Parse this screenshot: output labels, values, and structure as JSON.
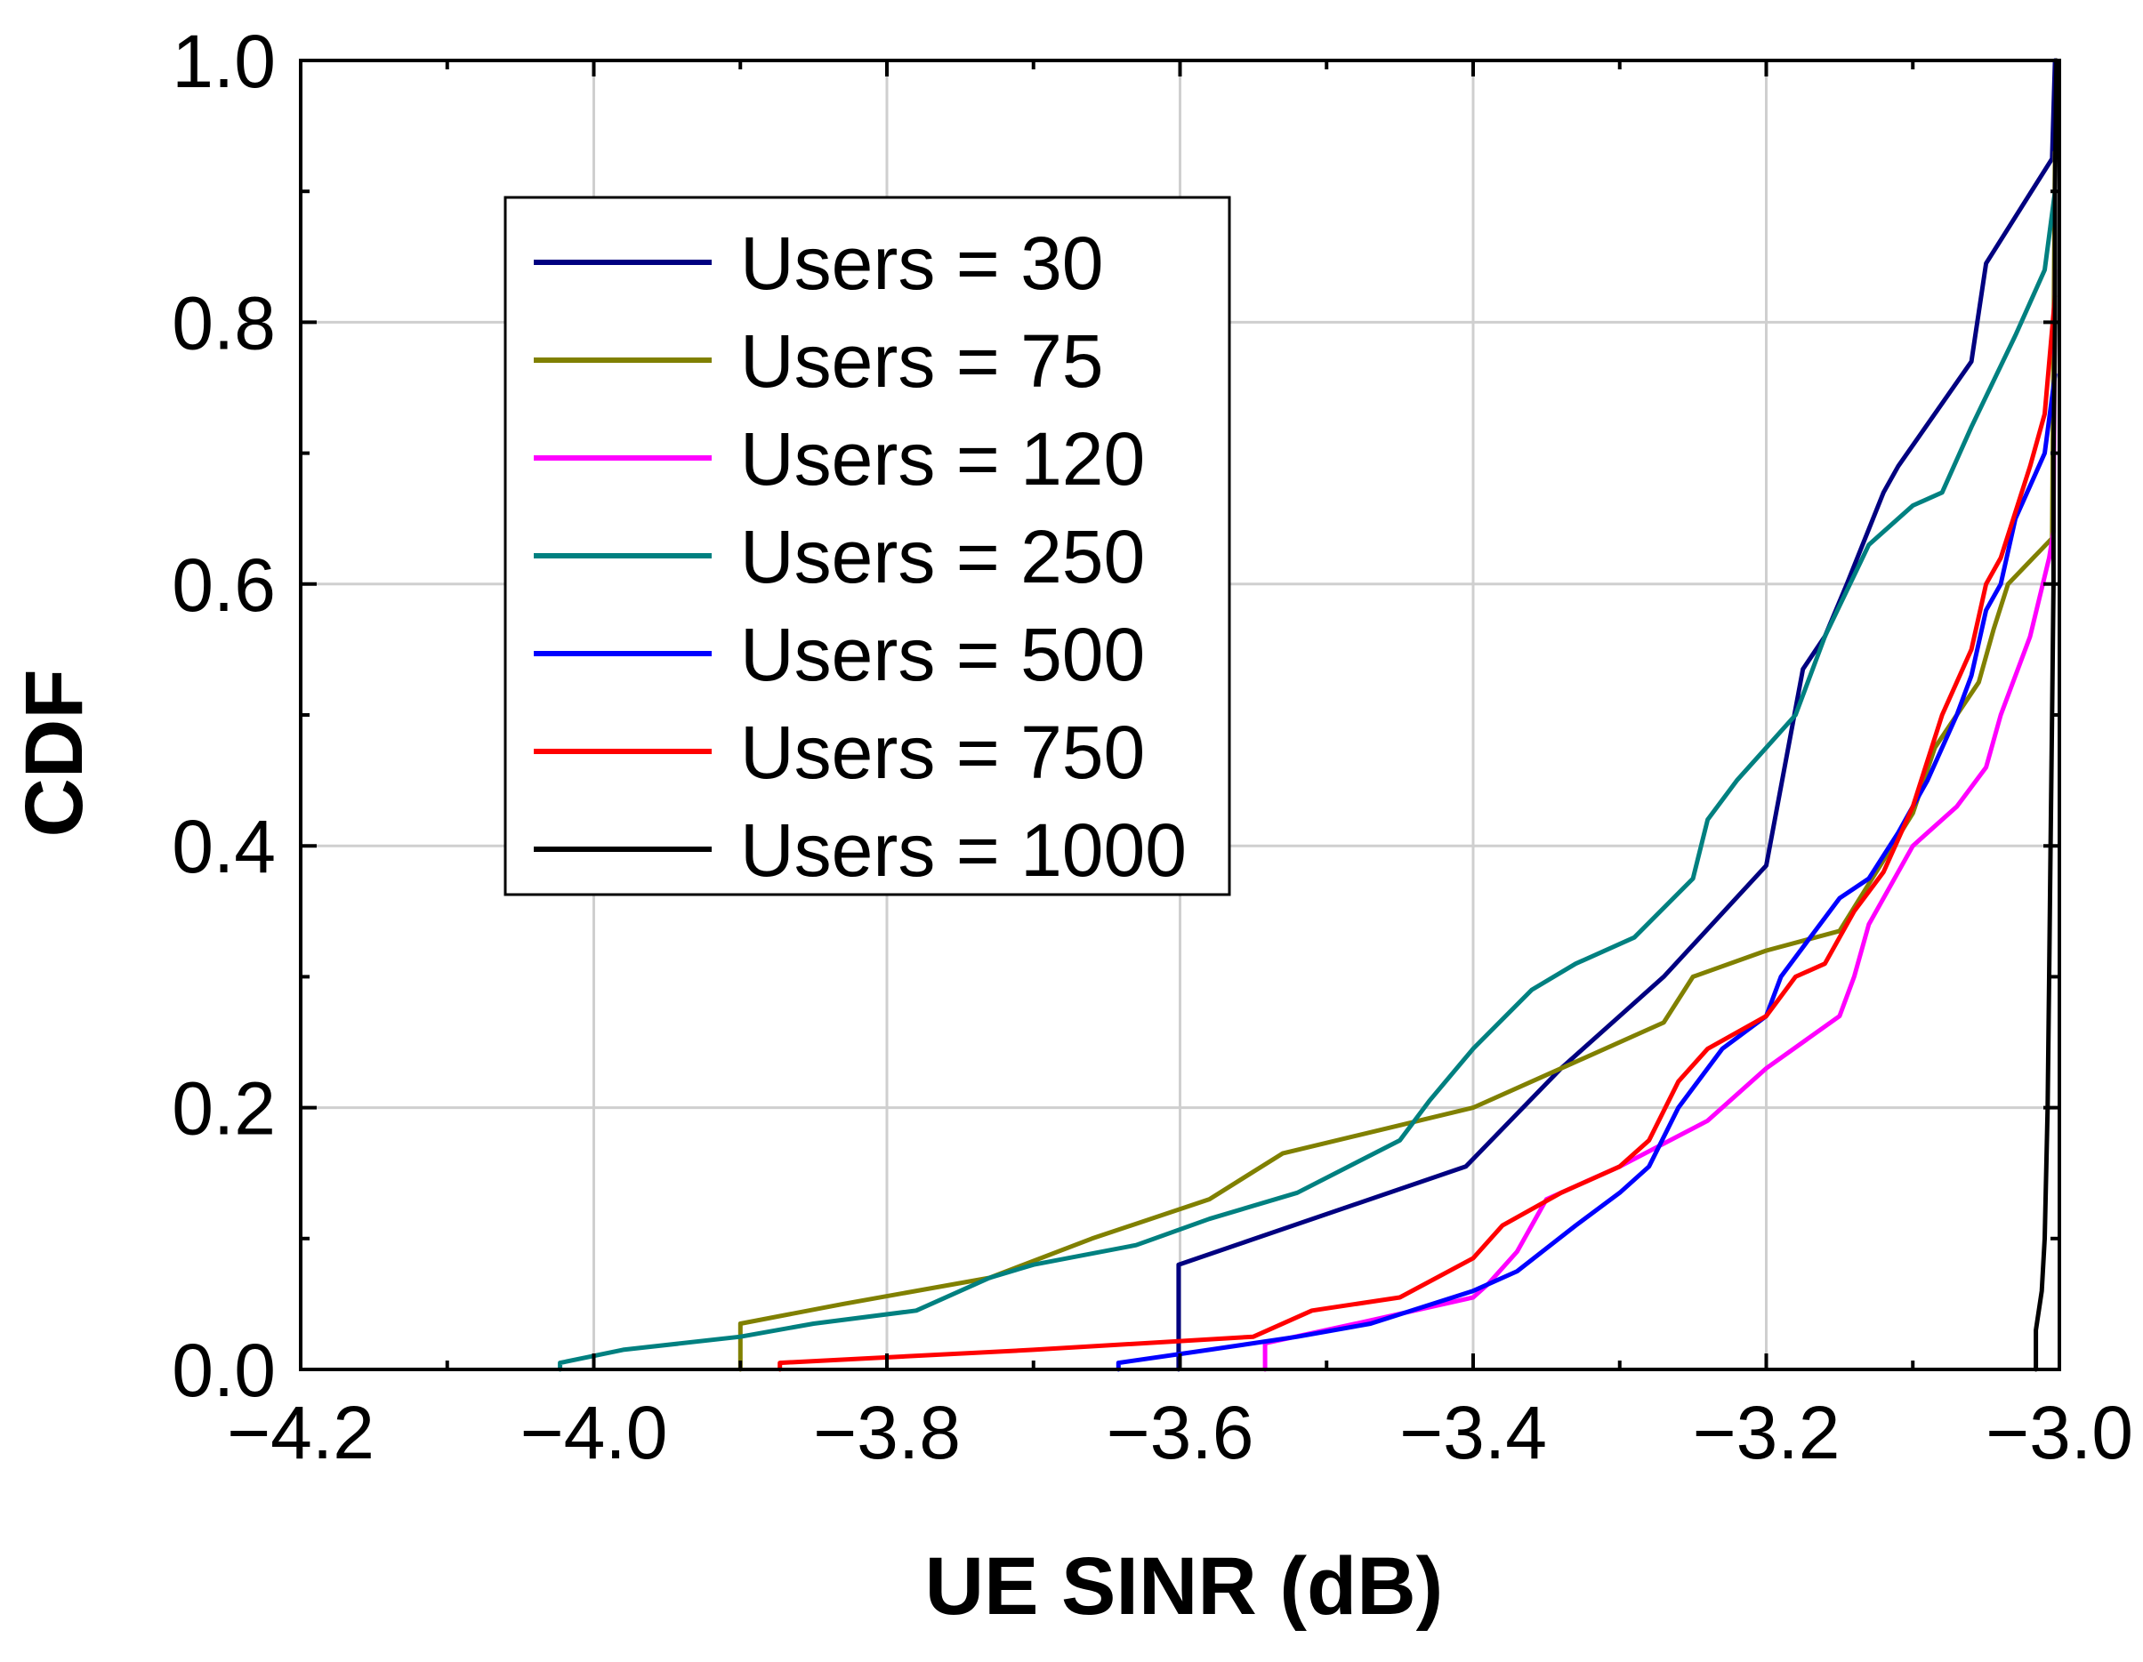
{
  "chart_data": {
    "type": "line",
    "title": "",
    "xlabel": "UE SINR (dB)",
    "ylabel": "CDF",
    "xlim": [
      -4.2,
      -3.0
    ],
    "ylim": [
      0.0,
      1.0
    ],
    "grid": true,
    "legend_position": "upper-left",
    "x_ticks": [
      -4.2,
      -4.0,
      -3.8,
      -3.6,
      -3.4,
      -3.2,
      -3.0
    ],
    "x_tick_labels": [
      "−4.2",
      "−4.0",
      "−3.8",
      "−3.6",
      "−3.4",
      "−3.2",
      "−3.0"
    ],
    "y_ticks": [
      0.0,
      0.2,
      0.4,
      0.6,
      0.8,
      1.0
    ],
    "y_tick_labels": [
      "0.0",
      "0.2",
      "0.4",
      "0.6",
      "0.8",
      "1.0"
    ],
    "series": [
      {
        "name": "Users = 30",
        "color": "#000080",
        "points": [
          [
            -3.601,
            0
          ],
          [
            -3.601,
            0.08
          ],
          [
            -3.405,
            0.155
          ],
          [
            -3.34,
            0.23
          ],
          [
            -3.27,
            0.3
          ],
          [
            -3.2,
            0.385
          ],
          [
            -3.175,
            0.535
          ],
          [
            -3.16,
            0.56
          ],
          [
            -3.145,
            0.6
          ],
          [
            -3.12,
            0.67
          ],
          [
            -3.11,
            0.69
          ],
          [
            -3.06,
            0.77
          ],
          [
            -3.05,
            0.845
          ],
          [
            -3.005,
            0.925
          ],
          [
            -3.003,
            1.0
          ]
        ]
      },
      {
        "name": "Users = 75",
        "color": "#808000",
        "points": [
          [
            -3.9,
            0
          ],
          [
            -3.9,
            0.035
          ],
          [
            -3.83,
            0.05
          ],
          [
            -3.73,
            0.07
          ],
          [
            -3.66,
            0.1
          ],
          [
            -3.58,
            0.13
          ],
          [
            -3.53,
            0.165
          ],
          [
            -3.4,
            0.2
          ],
          [
            -3.35,
            0.225
          ],
          [
            -3.27,
            0.265
          ],
          [
            -3.25,
            0.3
          ],
          [
            -3.2,
            0.32
          ],
          [
            -3.15,
            0.335
          ],
          [
            -3.1,
            0.425
          ],
          [
            -3.085,
            0.475
          ],
          [
            -3.055,
            0.525
          ],
          [
            -3.045,
            0.565
          ],
          [
            -3.035,
            0.6
          ],
          [
            -3.005,
            0.635
          ],
          [
            -3.003,
            0.93
          ]
        ]
      },
      {
        "name": "Users = 120",
        "color": "#ff00ff",
        "points": [
          [
            -3.542,
            0
          ],
          [
            -3.542,
            0.02
          ],
          [
            -3.48,
            0.035
          ],
          [
            -3.4,
            0.055
          ],
          [
            -3.39,
            0.065
          ],
          [
            -3.37,
            0.09
          ],
          [
            -3.35,
            0.13
          ],
          [
            -3.3,
            0.155
          ],
          [
            -3.24,
            0.19
          ],
          [
            -3.2,
            0.23
          ],
          [
            -3.15,
            0.27
          ],
          [
            -3.14,
            0.3
          ],
          [
            -3.13,
            0.34
          ],
          [
            -3.1,
            0.4
          ],
          [
            -3.07,
            0.43
          ],
          [
            -3.05,
            0.46
          ],
          [
            -3.04,
            0.5
          ],
          [
            -3.02,
            0.56
          ],
          [
            -3.007,
            0.62
          ],
          [
            -3.004,
            0.64
          ],
          [
            -3.003,
            0.84
          ]
        ]
      },
      {
        "name": "Users = 250",
        "color": "#008080",
        "points": [
          [
            -4.023,
            0
          ],
          [
            -4.023,
            0.005
          ],
          [
            -3.98,
            0.015
          ],
          [
            -3.9,
            0.025
          ],
          [
            -3.85,
            0.035
          ],
          [
            -3.78,
            0.045
          ],
          [
            -3.73,
            0.07
          ],
          [
            -3.7,
            0.08
          ],
          [
            -3.63,
            0.095
          ],
          [
            -3.58,
            0.115
          ],
          [
            -3.52,
            0.135
          ],
          [
            -3.45,
            0.175
          ],
          [
            -3.43,
            0.205
          ],
          [
            -3.4,
            0.245
          ],
          [
            -3.36,
            0.29
          ],
          [
            -3.33,
            0.31
          ],
          [
            -3.29,
            0.33
          ],
          [
            -3.25,
            0.375
          ],
          [
            -3.24,
            0.42
          ],
          [
            -3.22,
            0.45
          ],
          [
            -3.2,
            0.475
          ],
          [
            -3.18,
            0.5
          ],
          [
            -3.16,
            0.56
          ],
          [
            -3.13,
            0.63
          ],
          [
            -3.1,
            0.66
          ],
          [
            -3.08,
            0.67
          ],
          [
            -3.06,
            0.72
          ],
          [
            -3.03,
            0.79
          ],
          [
            -3.01,
            0.84
          ],
          [
            -3.003,
            0.9
          ]
        ]
      },
      {
        "name": "Users = 500",
        "color": "#0000ff",
        "points": [
          [
            -3.642,
            0
          ],
          [
            -3.642,
            0.005
          ],
          [
            -3.58,
            0.015
          ],
          [
            -3.52,
            0.025
          ],
          [
            -3.47,
            0.035
          ],
          [
            -3.4,
            0.06
          ],
          [
            -3.37,
            0.075
          ],
          [
            -3.33,
            0.11
          ],
          [
            -3.3,
            0.135
          ],
          [
            -3.28,
            0.155
          ],
          [
            -3.26,
            0.2
          ],
          [
            -3.23,
            0.245
          ],
          [
            -3.2,
            0.27
          ],
          [
            -3.19,
            0.3
          ],
          [
            -3.17,
            0.33
          ],
          [
            -3.15,
            0.36
          ],
          [
            -3.13,
            0.375
          ],
          [
            -3.11,
            0.41
          ],
          [
            -3.09,
            0.45
          ],
          [
            -3.07,
            0.5
          ],
          [
            -3.06,
            0.53
          ],
          [
            -3.05,
            0.58
          ],
          [
            -3.04,
            0.6
          ],
          [
            -3.03,
            0.65
          ],
          [
            -3.01,
            0.7
          ],
          [
            -3.003,
            0.76
          ]
        ]
      },
      {
        "name": "Users = 750",
        "color": "#ff0000",
        "points": [
          [
            -3.873,
            0
          ],
          [
            -3.873,
            0.005
          ],
          [
            -3.7,
            0.015
          ],
          [
            -3.55,
            0.025
          ],
          [
            -3.51,
            0.045
          ],
          [
            -3.45,
            0.055
          ],
          [
            -3.4,
            0.085
          ],
          [
            -3.38,
            0.11
          ],
          [
            -3.34,
            0.135
          ],
          [
            -3.3,
            0.155
          ],
          [
            -3.28,
            0.175
          ],
          [
            -3.26,
            0.22
          ],
          [
            -3.24,
            0.245
          ],
          [
            -3.2,
            0.27
          ],
          [
            -3.18,
            0.3
          ],
          [
            -3.16,
            0.31
          ],
          [
            -3.14,
            0.35
          ],
          [
            -3.12,
            0.38
          ],
          [
            -3.1,
            0.43
          ],
          [
            -3.08,
            0.5
          ],
          [
            -3.06,
            0.55
          ],
          [
            -3.05,
            0.6
          ],
          [
            -3.04,
            0.62
          ],
          [
            -3.02,
            0.69
          ],
          [
            -3.01,
            0.73
          ],
          [
            -3.003,
            0.82
          ]
        ]
      },
      {
        "name": "Users = 1000",
        "color": "#000000",
        "points": [
          [
            -3.016,
            0
          ],
          [
            -3.016,
            0.03
          ],
          [
            -3.012,
            0.06
          ],
          [
            -3.01,
            0.1
          ],
          [
            -3.008,
            0.2
          ],
          [
            -3.007,
            0.3
          ],
          [
            -3.006,
            0.4
          ],
          [
            -3.005,
            0.5
          ],
          [
            -3.004,
            0.6
          ],
          [
            -3.004,
            0.7
          ],
          [
            -3.003,
            0.8
          ],
          [
            -3.003,
            0.9
          ],
          [
            -3.002,
            1.0
          ]
        ]
      }
    ]
  }
}
